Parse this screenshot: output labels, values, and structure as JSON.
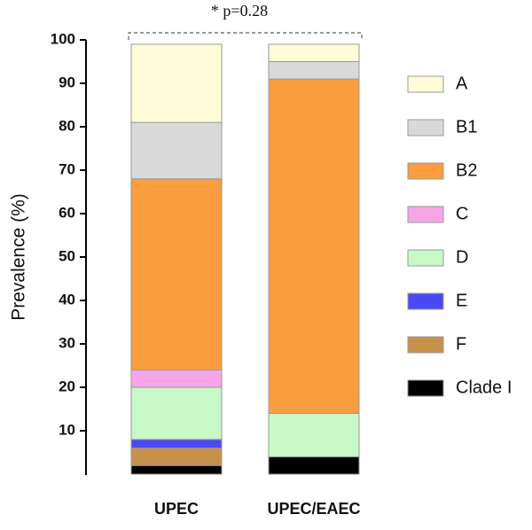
{
  "chart_data": {
    "type": "stacked_bar",
    "annotation": "* p=0.28",
    "y_label": "Prevalence (%)",
    "categories": [
      "UPEC",
      "UPEC/EAEC"
    ],
    "series": [
      {
        "name": "A",
        "color": "#fffbd8",
        "values": [
          18,
          4
        ]
      },
      {
        "name": "B1",
        "color": "#d9d9d9",
        "values": [
          13,
          4
        ]
      },
      {
        "name": "B2",
        "color": "#f99d3f",
        "values": [
          44,
          77
        ]
      },
      {
        "name": "C",
        "color": "#f6a6e8",
        "values": [
          4,
          0
        ]
      },
      {
        "name": "D",
        "color": "#c8f7c8",
        "values": [
          12,
          10
        ]
      },
      {
        "name": "E",
        "color": "#4a4af5",
        "values": [
          2,
          0
        ]
      },
      {
        "name": "F",
        "color": "#c8914a",
        "values": [
          4,
          0
        ]
      },
      {
        "name": "Clade I",
        "color": "#000000",
        "values": [
          2,
          4
        ]
      }
    ],
    "ylim": [
      0,
      100
    ],
    "yticks": [
      10,
      20,
      30,
      40,
      50,
      60,
      70,
      80,
      90,
      100
    ]
  }
}
